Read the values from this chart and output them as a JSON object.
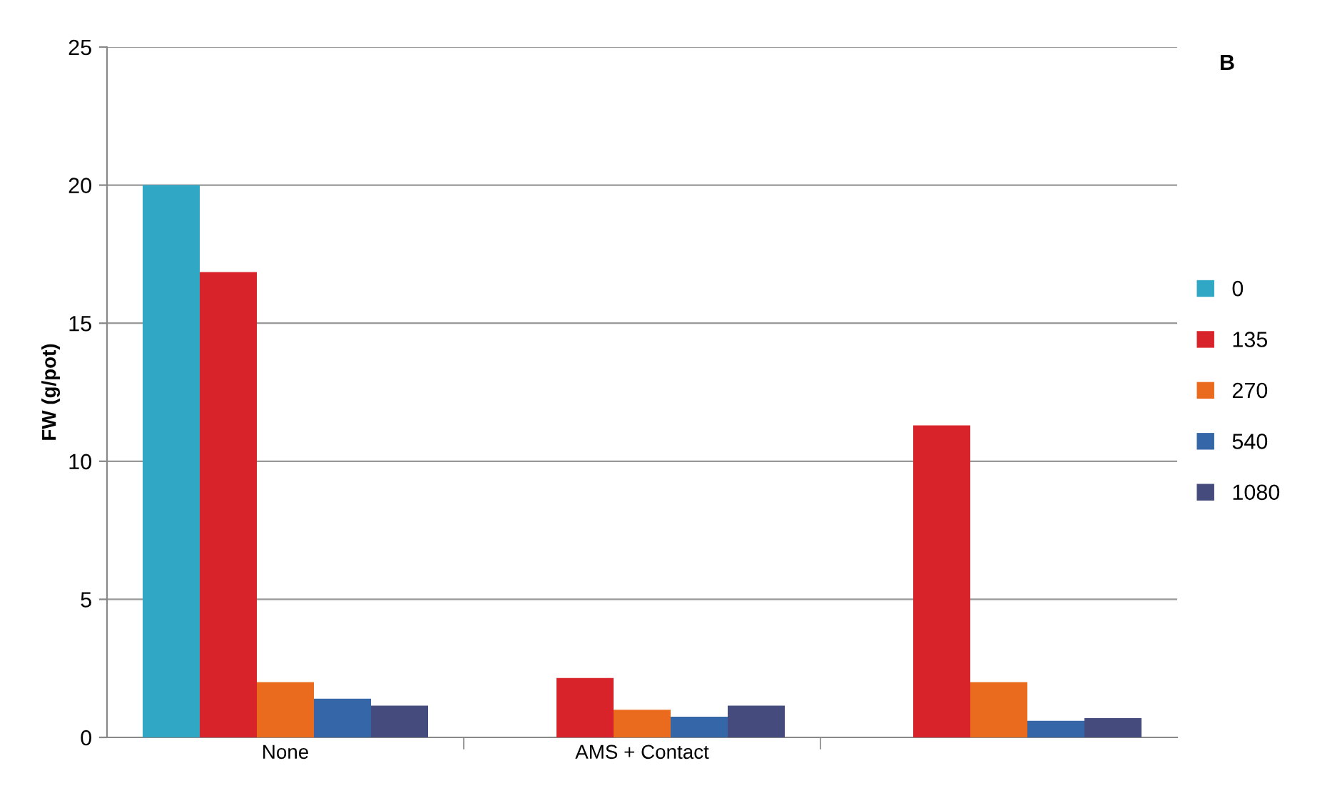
{
  "chart_data": {
    "type": "bar",
    "ylabel": "FW (g/pot)",
    "categories": [
      "None",
      "AMS + Contact",
      null
    ],
    "series": [
      {
        "name": "0",
        "color": "#31a7c6",
        "values": [
          20,
          null,
          null
        ]
      },
      {
        "name": "135",
        "color": "#d9232a",
        "values": [
          16.85,
          2.15,
          11.3
        ]
      },
      {
        "name": "270",
        "color": "#ea6a1e",
        "values": [
          2.0,
          1.0,
          2.0
        ]
      },
      {
        "name": "540",
        "color": "#3466a8",
        "values": [
          1.4,
          0.75,
          0.6
        ]
      },
      {
        "name": "1080",
        "color": "#454b7c",
        "values": [
          1.15,
          1.15,
          0.7
        ]
      }
    ],
    "ylim": [
      0,
      25
    ],
    "yticks": [
      0,
      5,
      10,
      15,
      20,
      25
    ],
    "grid": "y",
    "legend": "right",
    "annotations": [
      "B"
    ]
  }
}
